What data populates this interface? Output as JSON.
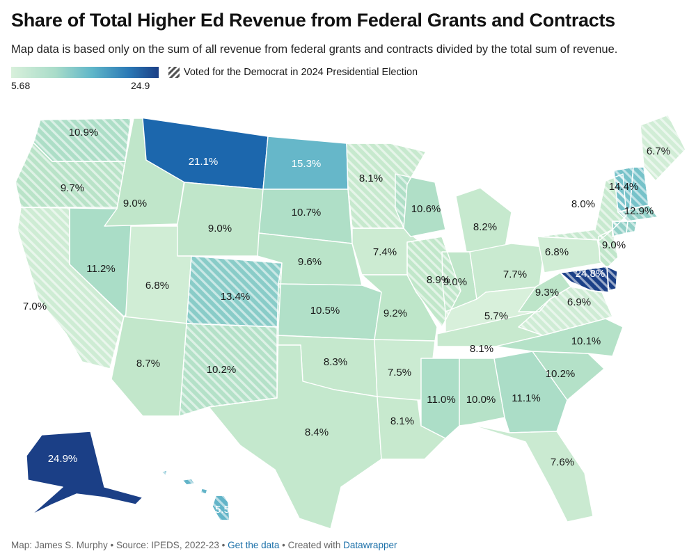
{
  "header": {
    "title": "Share of Total Higher Ed Revenue from Federal Grants and Contracts",
    "subtitle": "Map data is based only on the sum of all revenue from federal grants and contracts divided by the total sum of revenue."
  },
  "legend": {
    "min": "5.68",
    "max": "24.9",
    "pattern_label": "Voted for the Democrat in 2024 Presidential Election",
    "color_low": "#d8f0db",
    "color_high": "#1b3f86"
  },
  "chart_data": {
    "type": "choropleth",
    "title": "Share of Total Higher Ed Revenue from Federal Grants and Contracts",
    "unit": "%",
    "range": [
      5.68,
      24.9
    ],
    "states": [
      {
        "code": "WA",
        "value": 10.9,
        "label": "10.9%",
        "democrat": true
      },
      {
        "code": "OR",
        "value": 9.7,
        "label": "9.7%",
        "democrat": true
      },
      {
        "code": "CA",
        "value": 7.0,
        "label": "7.0%",
        "democrat": true
      },
      {
        "code": "NV",
        "value": 11.2,
        "label": "11.2%",
        "democrat": false
      },
      {
        "code": "ID",
        "value": 9.0,
        "label": "9.0%",
        "democrat": false
      },
      {
        "code": "MT",
        "value": 21.1,
        "label": "21.1%",
        "democrat": false
      },
      {
        "code": "WY",
        "value": 9.0,
        "label": "9.0%",
        "democrat": false
      },
      {
        "code": "UT",
        "value": 6.8,
        "label": "6.8%",
        "democrat": false
      },
      {
        "code": "CO",
        "value": 13.4,
        "label": "13.4%",
        "democrat": true
      },
      {
        "code": "AZ",
        "value": 8.7,
        "label": "8.7%",
        "democrat": false
      },
      {
        "code": "NM",
        "value": 10.2,
        "label": "10.2%",
        "democrat": true
      },
      {
        "code": "ND",
        "value": 15.3,
        "label": "15.3%",
        "democrat": false
      },
      {
        "code": "SD",
        "value": 10.7,
        "label": "10.7%",
        "democrat": false
      },
      {
        "code": "NE",
        "value": 9.6,
        "label": "9.6%",
        "democrat": false
      },
      {
        "code": "KS",
        "value": 10.5,
        "label": "10.5%",
        "democrat": false
      },
      {
        "code": "OK",
        "value": 8.3,
        "label": "8.3%",
        "democrat": false
      },
      {
        "code": "TX",
        "value": 8.4,
        "label": "8.4%",
        "democrat": false
      },
      {
        "code": "MN",
        "value": 8.1,
        "label": "8.1%",
        "democrat": true
      },
      {
        "code": "IA",
        "value": 7.4,
        "label": "7.4%",
        "democrat": false
      },
      {
        "code": "MO",
        "value": 9.2,
        "label": "9.2%",
        "democrat": false
      },
      {
        "code": "AR",
        "value": 7.5,
        "label": "7.5%",
        "democrat": false
      },
      {
        "code": "LA",
        "value": 8.1,
        "label": "8.1%",
        "democrat": false
      },
      {
        "code": "WI",
        "value": 10.6,
        "label": "10.6%",
        "democrat": false
      },
      {
        "code": "IL",
        "value": 8.9,
        "label": "8.9%",
        "democrat": true
      },
      {
        "code": "MI",
        "value": 8.2,
        "label": "8.2%",
        "democrat": false
      },
      {
        "code": "IN",
        "value": 9.0,
        "label": "9.0%",
        "democrat": false
      },
      {
        "code": "OH",
        "value": 7.7,
        "label": "7.7%",
        "democrat": false
      },
      {
        "code": "KY",
        "value": 5.7,
        "label": "5.7%",
        "democrat": false
      },
      {
        "code": "TN",
        "value": 8.1,
        "label": "8.1%",
        "democrat": false
      },
      {
        "code": "MS",
        "value": 11.0,
        "label": "11.0%",
        "democrat": false
      },
      {
        "code": "AL",
        "value": 10.0,
        "label": "10.0%",
        "democrat": false
      },
      {
        "code": "GA",
        "value": 11.1,
        "label": "11.1%",
        "democrat": false
      },
      {
        "code": "FL",
        "value": 7.6,
        "label": "7.6%",
        "democrat": false
      },
      {
        "code": "SC",
        "value": 10.2,
        "label": "10.2%",
        "democrat": false
      },
      {
        "code": "NC",
        "value": 10.1,
        "label": "10.1%",
        "democrat": false
      },
      {
        "code": "VA",
        "value": 6.9,
        "label": "6.9%",
        "democrat": true
      },
      {
        "code": "WV",
        "value": 9.3,
        "label": "9.3%",
        "democrat": false
      },
      {
        "code": "PA",
        "value": 6.8,
        "label": "6.8%",
        "democrat": false
      },
      {
        "code": "NY",
        "value": 8.0,
        "label": "8.0%",
        "democrat": true
      },
      {
        "code": "NJ",
        "value": 9.0,
        "label": "9.0%",
        "democrat": true
      },
      {
        "code": "MD",
        "value": 24.8,
        "label": "24.8%",
        "democrat": true
      },
      {
        "code": "DE",
        "value": null,
        "label": "",
        "democrat": true
      },
      {
        "code": "VT",
        "value": 14.4,
        "label": "14.4%",
        "democrat": true
      },
      {
        "code": "NH",
        "value": null,
        "label": "",
        "democrat": true
      },
      {
        "code": "ME",
        "value": 6.7,
        "label": "6.7%",
        "democrat": true
      },
      {
        "code": "MA",
        "value": 12.9,
        "label": "12.9%",
        "democrat": true
      },
      {
        "code": "CT",
        "value": null,
        "label": "",
        "democrat": true
      },
      {
        "code": "RI",
        "value": null,
        "label": "",
        "democrat": true
      },
      {
        "code": "AK",
        "value": 24.9,
        "label": "24.9%",
        "democrat": false
      },
      {
        "code": "HI",
        "value": 15.5,
        "label": "15.5%",
        "democrat": true
      }
    ]
  },
  "footer": {
    "credit": "Map: James S. Murphy • Source: IPEDS, 2022-23 • ",
    "get_data": "Get the data",
    "created_with": " • Created with ",
    "datawrapper": "Datawrapper"
  }
}
